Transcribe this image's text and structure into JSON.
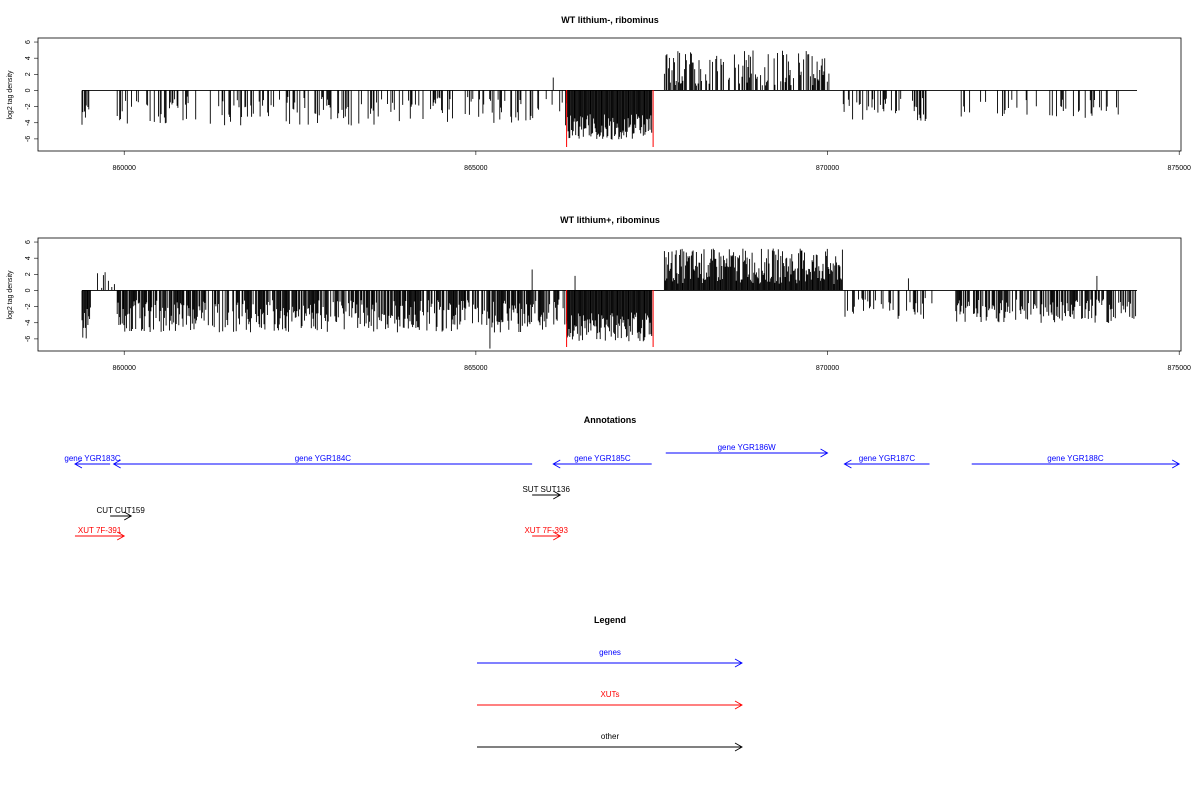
{
  "colors": {
    "genes": "#0000ff",
    "xuts": "#ff0000",
    "other": "#000000",
    "highlight": "#ff0000",
    "bars": "#000000"
  },
  "chart_data": [
    {
      "type": "bar",
      "title": "WT lithium-, ribominus",
      "ylabel": "log2 tag density",
      "xlim": [
        859400,
        874400
      ],
      "ylim": [
        -7.5,
        6.5
      ],
      "xticks": [
        "860000",
        "865000",
        "870000",
        "875000"
      ],
      "yticks": [
        "6",
        "4",
        "2",
        "0",
        "-2",
        "-4",
        "-6"
      ],
      "highlight_x": [
        866290,
        867520
      ],
      "series": [
        {
          "region": [
            859400,
            859500
          ],
          "sign": -1,
          "mean": 3.0,
          "spread": 1.5,
          "density": 0.9
        },
        {
          "region": [
            859900,
            861200
          ],
          "sign": -1,
          "mean": 2.4,
          "spread": 1.7,
          "density": 0.3
        },
        {
          "region": [
            861200,
            866000
          ],
          "sign": -1,
          "mean": 2.6,
          "spread": 1.8,
          "density": 0.3
        },
        {
          "region": [
            866000,
            866300
          ],
          "sign": -1,
          "mean": 2.6,
          "spread": 1.8,
          "density": 0.2
        },
        {
          "region": [
            866300,
            867500
          ],
          "sign": -1,
          "mean": 4.5,
          "spread": 1.6,
          "density": 1.0
        },
        {
          "region": [
            867680,
            870020
          ],
          "sign": 1,
          "mean": 2.8,
          "spread": 2.2,
          "density": 0.55
        },
        {
          "region": [
            870200,
            871500
          ],
          "sign": -1,
          "mean": 2.3,
          "spread": 1.5,
          "density": 0.3
        },
        {
          "region": [
            871900,
            874150
          ],
          "sign": -1,
          "mean": 2.3,
          "spread": 1.2,
          "density": 0.2
        }
      ],
      "peaks": [
        [
          866100,
          1.6
        ]
      ]
    },
    {
      "type": "bar",
      "title": "WT lithium+, ribominus",
      "ylabel": "log2 tag density",
      "xlim": [
        859400,
        874400
      ],
      "ylim": [
        -7.5,
        6.5
      ],
      "xticks": [
        "860000",
        "865000",
        "870000",
        "875000"
      ],
      "yticks": [
        "6",
        "4",
        "2",
        "0",
        "-2",
        "-4",
        "-6"
      ],
      "highlight_x": [
        866290,
        867520
      ],
      "series": [
        {
          "region": [
            859400,
            859520
          ],
          "sign": -1,
          "mean": 4.0,
          "spread": 2.0,
          "density": 1.0
        },
        {
          "region": [
            859500,
            859900
          ],
          "sign": 1,
          "mean": 1.3,
          "spread": 1.0,
          "density": 0.15
        },
        {
          "region": [
            859900,
            866000
          ],
          "sign": -1,
          "mean": 3.2,
          "spread": 2.0,
          "density": 0.75
        },
        {
          "region": [
            866000,
            866300
          ],
          "sign": -1,
          "mean": 3.0,
          "spread": 2.0,
          "density": 0.5
        },
        {
          "region": [
            866300,
            867500
          ],
          "sign": -1,
          "mean": 4.5,
          "spread": 1.8,
          "density": 1.0
        },
        {
          "region": [
            867680,
            870220
          ],
          "sign": 1,
          "mean": 3.0,
          "spread": 2.2,
          "density": 1.0
        },
        {
          "region": [
            870200,
            871500
          ],
          "sign": -1,
          "mean": 2.2,
          "spread": 1.4,
          "density": 0.35
        },
        {
          "region": [
            871800,
            874400
          ],
          "sign": -1,
          "mean": 2.6,
          "spread": 1.5,
          "density": 0.65
        }
      ],
      "peaks": [
        [
          865200,
          -7.2
        ],
        [
          865800,
          2.6
        ],
        [
          866410,
          1.8
        ],
        [
          871150,
          1.5
        ],
        [
          873830,
          1.8
        ]
      ]
    }
  ],
  "annotations": {
    "title": "Annotations",
    "features": [
      {
        "label": "gene YGR183C",
        "kind": "genes",
        "start": 859300,
        "end": 859800,
        "strand": "-",
        "row": 0
      },
      {
        "label": "gene YGR184C",
        "kind": "genes",
        "start": 859850,
        "end": 865800,
        "strand": "-",
        "row": 0
      },
      {
        "label": "gene YGR185C",
        "kind": "genes",
        "start": 866100,
        "end": 867500,
        "strand": "-",
        "row": 0
      },
      {
        "label": "gene YGR186W",
        "kind": "genes",
        "start": 867700,
        "end": 870000,
        "strand": "+",
        "row": -1
      },
      {
        "label": "gene YGR187C",
        "kind": "genes",
        "start": 870240,
        "end": 871450,
        "strand": "-",
        "row": 0
      },
      {
        "label": "gene YGR188C",
        "kind": "genes",
        "start": 872050,
        "end": 875000,
        "strand": "+",
        "row": 0
      },
      {
        "label": "SUT SUT136",
        "kind": "other",
        "start": 865800,
        "end": 866200,
        "strand": "+",
        "row": 1
      },
      {
        "label": "CUT CUT159",
        "kind": "other",
        "start": 859800,
        "end": 860100,
        "strand": "+",
        "row": 2
      },
      {
        "label": "XUT 7F-391",
        "kind": "xuts",
        "start": 859300,
        "end": 860000,
        "strand": "+",
        "row": 3
      },
      {
        "label": "XUT 7F-393",
        "kind": "xuts",
        "start": 865800,
        "end": 866200,
        "strand": "+",
        "row": 3
      }
    ]
  },
  "legend": {
    "title": "Legend",
    "items": [
      {
        "label": "genes",
        "kind": "genes"
      },
      {
        "label": "XUTs",
        "kind": "xuts"
      },
      {
        "label": "other",
        "kind": "other"
      }
    ]
  }
}
